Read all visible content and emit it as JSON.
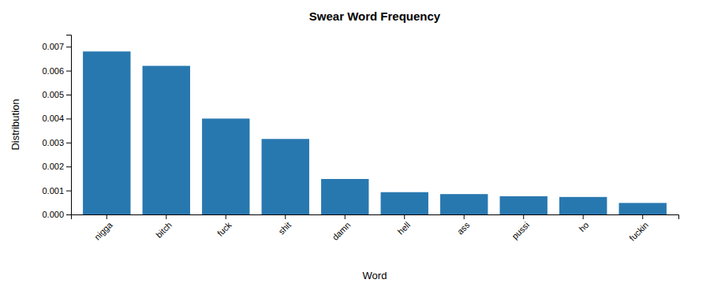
{
  "chart_data": {
    "type": "bar",
    "title": "Swear Word Frequency",
    "xlabel": "Word",
    "ylabel": "Distribution",
    "categories": [
      "nigga",
      "bitch",
      "fuck",
      "shit",
      "damn",
      "hell",
      "ass",
      "pussi",
      "ho",
      "fuckin"
    ],
    "values": [
      0.0068,
      0.0062,
      0.004,
      0.00315,
      0.00148,
      0.00093,
      0.00085,
      0.00076,
      0.00073,
      0.00048
    ],
    "color": "#2878b0",
    "ylim": [
      0,
      0.0075
    ],
    "yticks": [
      {
        "value": 0,
        "label": "0.000"
      },
      0.001,
      0.002,
      0.003,
      0.004,
      0.005,
      0.006,
      0.007
    ],
    "grid": false
  }
}
